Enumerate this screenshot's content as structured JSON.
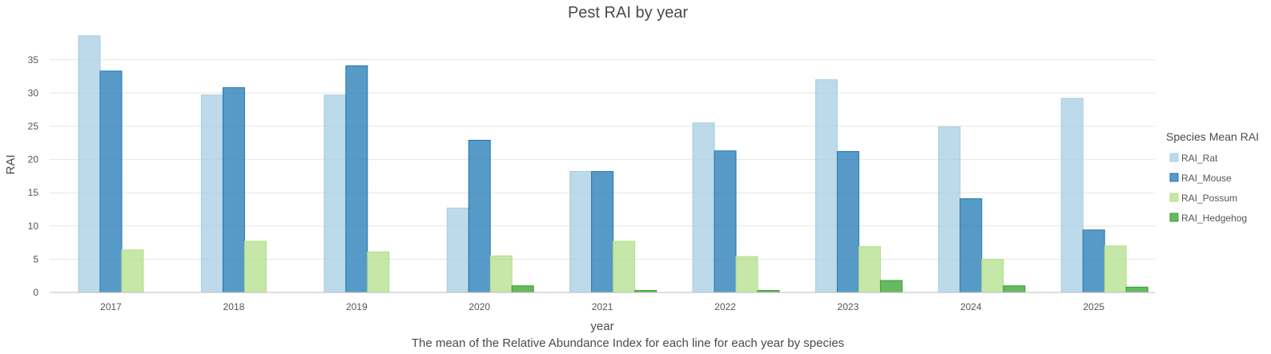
{
  "chart_data": {
    "type": "bar",
    "title": "Pest RAI by year",
    "xlabel": "year",
    "ylabel": "RAI",
    "caption": "The mean of the Relative Abundance Index for each line for each year by species",
    "categories": [
      "2017",
      "2018",
      "2019",
      "2020",
      "2021",
      "2022",
      "2023",
      "2024",
      "2025"
    ],
    "ylim": [
      0,
      38
    ],
    "yticks": [
      0,
      5,
      10,
      15,
      20,
      25,
      30,
      35
    ],
    "grid": true,
    "legend": {
      "title": "Species Mean RAI",
      "position": "right"
    },
    "series": [
      {
        "name": "RAI_Rat",
        "color": "#a6cee3",
        "values": [
          38.6,
          29.7,
          29.7,
          12.7,
          18.2,
          25.5,
          32.0,
          24.9,
          29.2
        ]
      },
      {
        "name": "RAI_Mouse",
        "color": "#1f78b4",
        "values": [
          33.3,
          30.8,
          34.1,
          22.9,
          18.2,
          21.3,
          21.2,
          14.1,
          9.4
        ]
      },
      {
        "name": "RAI_Possum",
        "color": "#b2df8a",
        "values": [
          6.4,
          7.7,
          6.1,
          5.5,
          7.7,
          5.4,
          6.9,
          5.0,
          7.0
        ]
      },
      {
        "name": "RAI_Hedgehog",
        "color": "#33a02c",
        "values": [
          0,
          0,
          0,
          1.0,
          0.3,
          0.3,
          1.8,
          1.0,
          0.8
        ]
      }
    ]
  }
}
